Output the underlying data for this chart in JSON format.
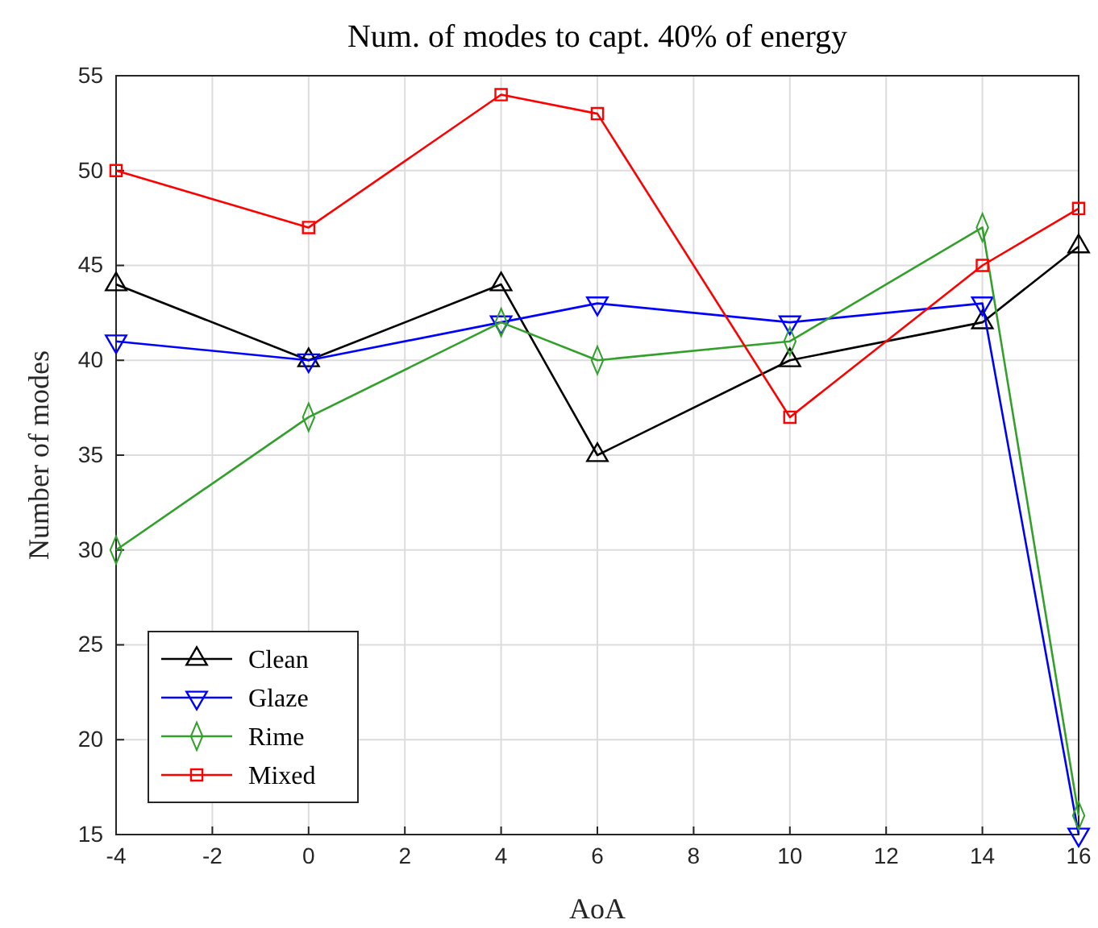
{
  "chart_data": {
    "type": "line",
    "title": "Num. of modes to capt. 40% of energy",
    "xlabel": "AoA",
    "ylabel": "Number of modes",
    "x": [
      -4,
      0,
      4,
      6,
      10,
      14,
      16
    ],
    "series": [
      {
        "name": "Clean",
        "color": "#000000",
        "marker": "triangle",
        "values": [
          44,
          40,
          44,
          35,
          40,
          42,
          46
        ]
      },
      {
        "name": "Glaze",
        "color": "#0000ff",
        "marker": "triangle-down",
        "values": [
          41,
          40,
          42,
          43,
          42,
          43,
          15
        ]
      },
      {
        "name": "Rime",
        "color": "#33a02c",
        "marker": "diamond",
        "values": [
          30,
          37,
          42,
          40,
          41,
          47,
          16
        ]
      },
      {
        "name": "Mixed",
        "color": "#ff0000",
        "marker": "square",
        "values": [
          50,
          47,
          54,
          53,
          37,
          45,
          48
        ]
      }
    ],
    "xlim": [
      -4,
      16
    ],
    "xticks": [
      -4,
      -2,
      0,
      2,
      4,
      6,
      8,
      10,
      12,
      14,
      16
    ],
    "ylim": [
      15,
      55
    ],
    "yticks": [
      15,
      20,
      25,
      30,
      35,
      40,
      45,
      50,
      55
    ],
    "grid": true,
    "legend": "bottom left",
    "line_style": "solid"
  }
}
